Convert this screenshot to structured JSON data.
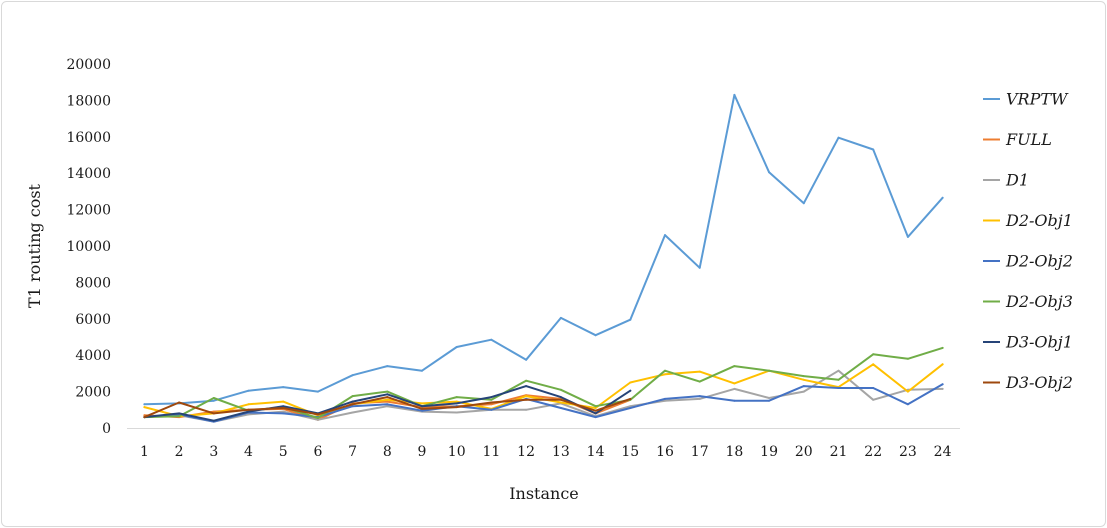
{
  "chart_data": {
    "type": "line",
    "xlabel": "Instance",
    "ylabel": "T1 routing cost",
    "categories": [
      "1",
      "2",
      "3",
      "4",
      "5",
      "6",
      "7",
      "8",
      "9",
      "10",
      "11",
      "12",
      "13",
      "14",
      "15",
      "16",
      "17",
      "18",
      "19",
      "20",
      "21",
      "22",
      "23",
      "24"
    ],
    "ylim": [
      0,
      20000
    ],
    "yticks": [
      0,
      2000,
      4000,
      6000,
      8000,
      10000,
      12000,
      14000,
      16000,
      18000,
      20000
    ],
    "grid": false,
    "legend": "right",
    "series": [
      {
        "name": "VRPTW",
        "color": "#5B9BD5",
        "values": [
          1300,
          1350,
          1500,
          2050,
          2250,
          2000,
          2900,
          3400,
          3150,
          4450,
          4850,
          3750,
          6050,
          5100,
          5950,
          10600,
          8800,
          18300,
          14050,
          12350,
          15950,
          15300,
          10500,
          12650
        ]
      },
      {
        "name": "FULL",
        "color": "#ED7D31",
        "values": [
          700,
          600,
          900,
          1000,
          1050,
          450,
          1350,
          1450,
          1150,
          1200,
          1300,
          1800,
          1600,
          800,
          1550,
          null,
          null,
          null,
          null,
          null,
          null,
          null,
          null,
          null
        ]
      },
      {
        "name": "D1",
        "color": "#A5A5A5",
        "values": [
          600,
          700,
          350,
          750,
          900,
          450,
          850,
          1200,
          900,
          850,
          1000,
          1000,
          1350,
          650,
          1200,
          1500,
          1600,
          2150,
          1650,
          2000,
          3150,
          1550,
          2100,
          2150
        ]
      },
      {
        "name": "D2-Obj1",
        "color": "#FFC000",
        "values": [
          1150,
          650,
          800,
          1300,
          1450,
          700,
          1300,
          1550,
          1350,
          1450,
          1050,
          1750,
          1400,
          1100,
          2500,
          2950,
          3100,
          2450,
          3150,
          2650,
          2250,
          3500,
          2000,
          3500
        ]
      },
      {
        "name": "D2-Obj2",
        "color": "#4472C4",
        "values": [
          600,
          750,
          350,
          850,
          800,
          600,
          1200,
          1300,
          950,
          1200,
          1000,
          1600,
          1100,
          600,
          1100,
          1600,
          1750,
          1500,
          1500,
          2300,
          2200,
          2200,
          1300,
          2400
        ]
      },
      {
        "name": "D2-Obj3",
        "color": "#70AD47",
        "values": [
          600,
          650,
          1650,
          950,
          1150,
          550,
          1750,
          2000,
          1200,
          1700,
          1550,
          2600,
          2100,
          1200,
          1550,
          3150,
          2550,
          3400,
          3150,
          2850,
          2650,
          4050,
          3800,
          4400
        ]
      },
      {
        "name": "D3-Obj1",
        "color": "#264478",
        "values": [
          600,
          800,
          400,
          900,
          1200,
          800,
          1450,
          1850,
          1200,
          1350,
          1700,
          2300,
          1700,
          800,
          2050,
          null,
          null,
          null,
          null,
          null,
          null,
          null,
          null,
          null
        ]
      },
      {
        "name": "D3-Obj2",
        "color": "#9E480E",
        "values": [
          600,
          1400,
          800,
          1000,
          1100,
          750,
          1300,
          1700,
          1050,
          1150,
          1400,
          1550,
          1550,
          950,
          1600,
          null,
          null,
          null,
          null,
          null,
          null,
          null,
          null,
          null
        ]
      }
    ]
  }
}
